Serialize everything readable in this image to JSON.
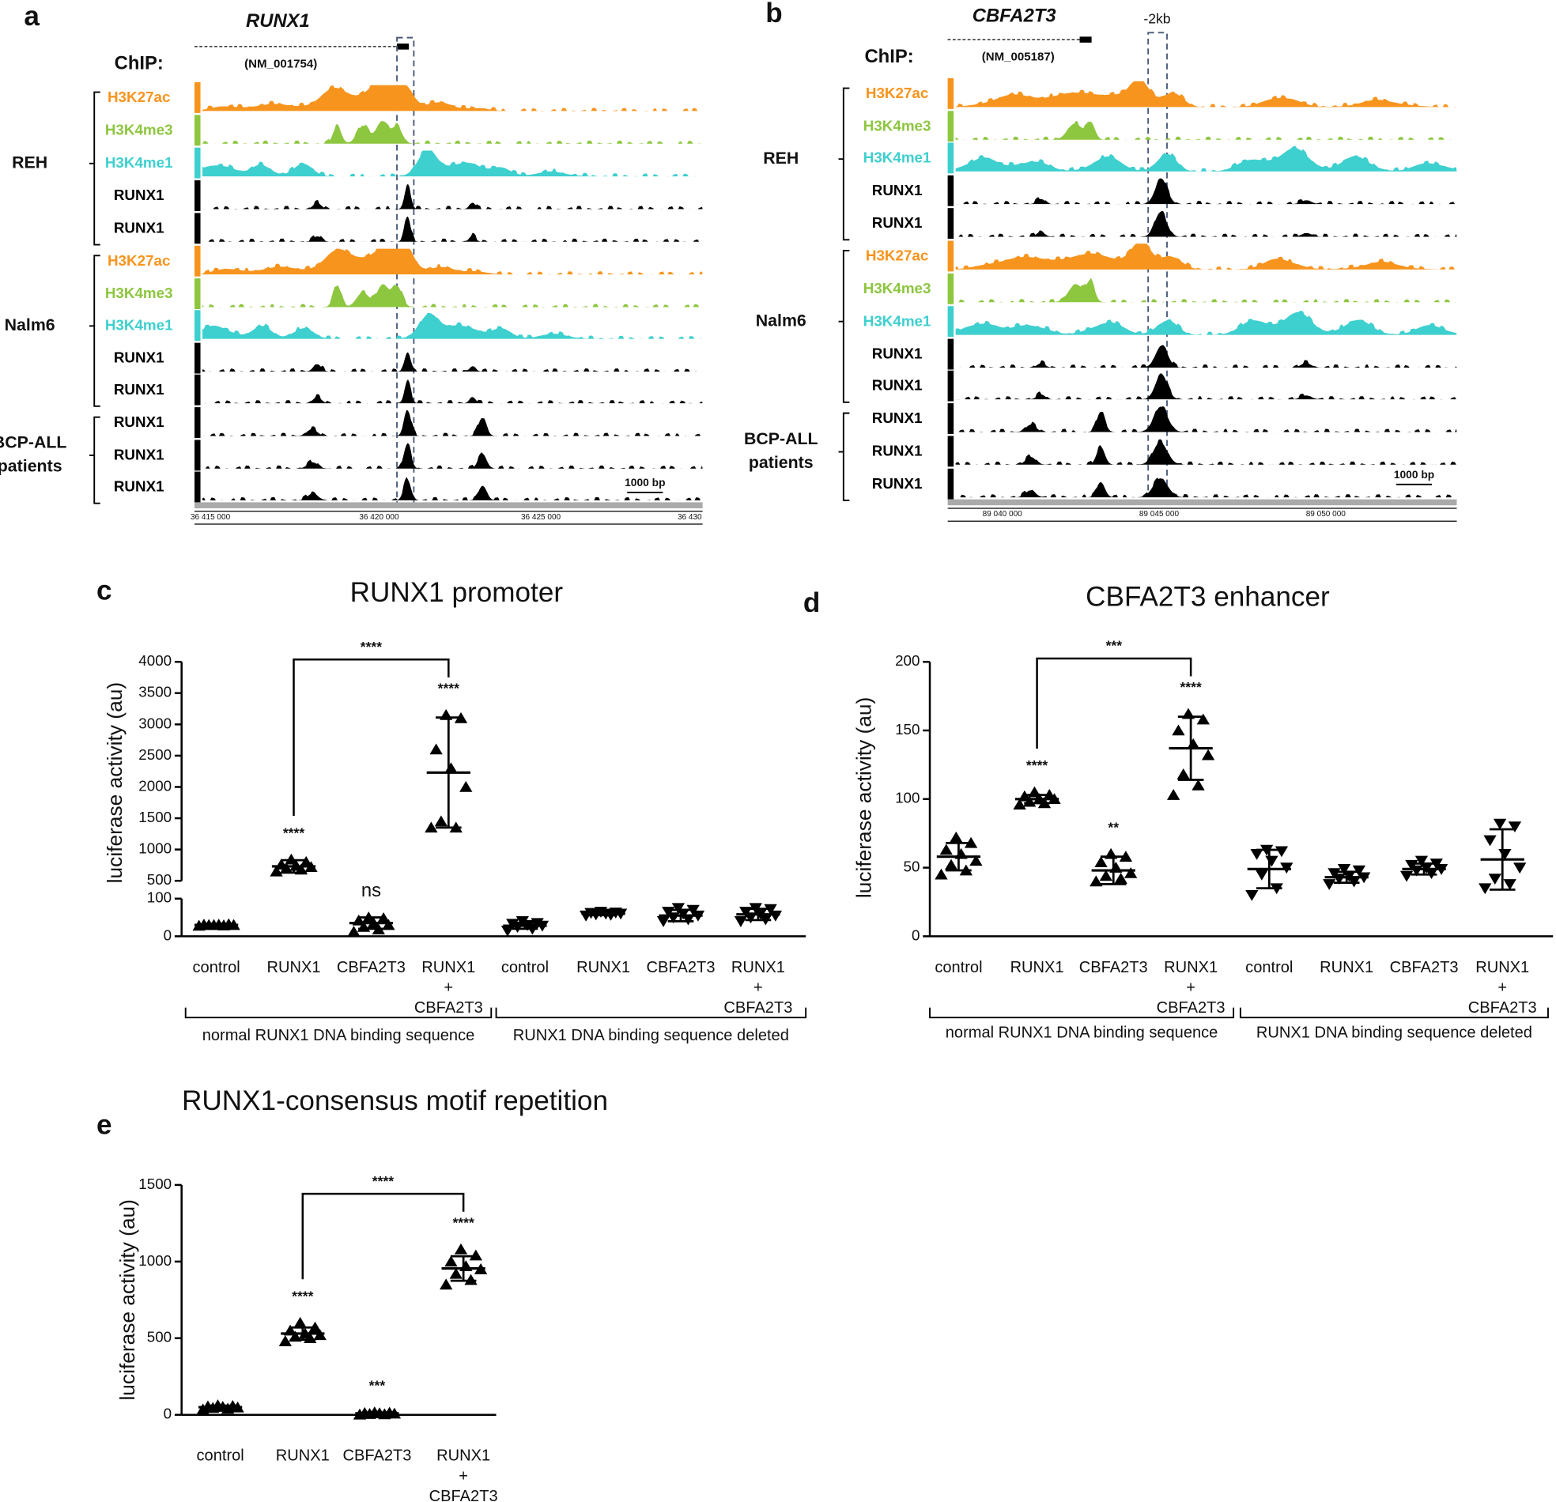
{
  "track_colors": {
    "H3K27ac": "#f7941d",
    "H3K4me3": "#8dc63f",
    "H3K4me1": "#3ecfcf",
    "RUNX1": "#000000"
  },
  "genome_panels": [
    {
      "letter": "a",
      "gene": "RUNX1",
      "chip": "ChIP:",
      "transcript": "(NM_001754)",
      "groups": [
        {
          "label": [
            "REH"
          ],
          "tracks": [
            "H3K27ac",
            "H3K4me3",
            "H3K4me1",
            "RUNX1",
            "RUNX1"
          ]
        },
        {
          "label": [
            "Nalm6"
          ],
          "tracks": [
            "H3K27ac",
            "H3K4me3",
            "H3K4me1",
            "RUNX1",
            "RUNX1"
          ]
        },
        {
          "label": [
            "BCP-ALL",
            "patients"
          ],
          "tracks": [
            "RUNX1",
            "RUNX1",
            "RUNX1"
          ]
        }
      ],
      "coordinates": [
        "36 415 000",
        "36 420 000",
        "36 425 000",
        "36 430"
      ],
      "scale_bar": "1000 bp"
    },
    {
      "letter": "b",
      "gene": "CBFA2T3",
      "annotation": "-2kb",
      "chip": "ChIP:",
      "transcript": "(NM_005187)",
      "groups": [
        {
          "label": [
            "REH"
          ],
          "tracks": [
            "H3K27ac",
            "H3K4me3",
            "H3K4me1",
            "RUNX1",
            "RUNX1"
          ]
        },
        {
          "label": [
            "Nalm6"
          ],
          "tracks": [
            "H3K27ac",
            "H3K4me3",
            "H3K4me1",
            "RUNX1",
            "RUNX1"
          ]
        },
        {
          "label": [
            "BCP-ALL",
            "patients"
          ],
          "tracks": [
            "RUNX1",
            "RUNX1",
            "RUNX1"
          ]
        }
      ],
      "coordinates": [
        "89 040 000",
        "89 045 000",
        "89 050 000"
      ],
      "scale_bar": "1000 bp"
    }
  ],
  "chart_data": [
    {
      "type": "scatter",
      "letter": "c",
      "title": "RUNX1 promoter",
      "ylabel": "luciferase activity (au)",
      "color": "#000000",
      "segments": [
        {
          "ylim": [
            0,
            100
          ],
          "yticks": [
            0,
            100
          ]
        },
        {
          "ylim": [
            500,
            4000
          ],
          "yticks": [
            500,
            1000,
            1500,
            2000,
            2500,
            3000,
            3500,
            4000
          ]
        }
      ],
      "groups": [
        {
          "label": "normal RUNX1 DNA binding sequence",
          "marker": "triangle-up",
          "categories": [
            "control",
            "RUNX1",
            "CBFA2T3",
            [
              "RUNX1",
              "+",
              "CBFA2T3"
            ]
          ],
          "values": [
            [
              28,
              29,
              30,
              30,
              31,
              31,
              32,
              30
            ],
            [
              650,
              680,
              700,
              720,
              740,
              760,
              800,
              840
            ],
            [
              12,
              18,
              25,
              30,
              35,
              42,
              48,
              50
            ],
            [
              1350,
              1350,
              1450,
              2000,
              2300,
              2600,
              3100,
              3150
            ]
          ],
          "means": [
            30,
            730,
            35,
            2230
          ],
          "sds": [
            3,
            100,
            15,
            880
          ],
          "significance": [
            null,
            "****",
            "ns",
            "****"
          ]
        },
        {
          "label": "RUNX1 DNA binding sequence deleted",
          "marker": "triangle-down",
          "categories": [
            "control",
            "RUNX1",
            "CBFA2T3",
            [
              "RUNX1",
              "+",
              "CBFA2T3"
            ]
          ],
          "values": [
            [
              15,
              20,
              25,
              28,
              30,
              33,
              35,
              40
            ],
            [
              55,
              57,
              58,
              60,
              60,
              62,
              63,
              65
            ],
            [
              40,
              45,
              50,
              55,
              60,
              65,
              70,
              75
            ],
            [
              40,
              45,
              50,
              55,
              60,
              65,
              72,
              75
            ]
          ],
          "means": [
            28,
            60,
            55,
            58
          ],
          "sds": [
            8,
            4,
            15,
            15
          ],
          "significance": [
            null,
            null,
            null,
            null
          ]
        }
      ],
      "comparison": {
        "label": "****",
        "between": [
          1,
          3
        ]
      }
    },
    {
      "type": "scatter",
      "letter": "d",
      "title": "CBFA2T3 enhancer",
      "ylabel": "luciferase activity (au)",
      "color": "#000000",
      "ylim": [
        0,
        200
      ],
      "yticks": [
        0,
        50,
        100,
        150,
        200
      ],
      "groups": [
        {
          "label": "normal RUNX1 DNA binding sequence",
          "marker": "triangle-up",
          "categories": [
            "control",
            "RUNX1",
            "CBFA2T3",
            [
              "RUNX1",
              "+",
              "CBFA2T3"
            ]
          ],
          "values": [
            [
              45,
              48,
              52,
              55,
              60,
              63,
              68,
              72
            ],
            [
              96,
              97,
              98,
              100,
              100,
              102,
              103,
              105
            ],
            [
              40,
              42,
              44,
              46,
              50,
              54,
              58,
              60
            ],
            [
              103,
              110,
              118,
              132,
              140,
              150,
              158,
              162
            ]
          ],
          "means": [
            58,
            100,
            48,
            137
          ],
          "sds": [
            10,
            3,
            10,
            23
          ],
          "significance": [
            null,
            "****",
            "**",
            "****"
          ]
        },
        {
          "label": "RUNX1 DNA binding sequence deleted",
          "marker": "triangle-down",
          "categories": [
            "control",
            "RUNX1",
            "CBFA2T3",
            [
              "RUNX1",
              "+",
              "CBFA2T3"
            ]
          ],
          "values": [
            [
              30,
              35,
              45,
              50,
              55,
              60,
              62,
              63
            ],
            [
              38,
              40,
              42,
              43,
              44,
              46,
              48,
              49
            ],
            [
              44,
              46,
              48,
              49,
              50,
              52,
              53,
              55
            ],
            [
              35,
              38,
              42,
              50,
              60,
              70,
              80,
              82
            ]
          ],
          "means": [
            49,
            43,
            49,
            56
          ],
          "sds": [
            14,
            4,
            4,
            22
          ],
          "significance": [
            null,
            null,
            null,
            null
          ]
        }
      ],
      "comparison": {
        "label": "***",
        "between": [
          1,
          3
        ]
      }
    },
    {
      "type": "scatter",
      "letter": "e",
      "title": "RUNX1-consensus motif repetition",
      "ylabel": "luciferase activity (au)",
      "color": "#000000",
      "ylim": [
        0,
        1500
      ],
      "yticks": [
        0,
        500,
        1000,
        1500
      ],
      "groups": [
        {
          "marker": "triangle-up",
          "categories": [
            "control",
            "RUNX1",
            "CBFA2T3",
            [
              "RUNX1",
              "+",
              "CBFA2T3"
            ]
          ],
          "values": [
            [
              35,
              40,
              45,
              48,
              52,
              55,
              58,
              62
            ],
            [
              480,
              500,
              510,
              520,
              530,
              550,
              570,
              600
            ],
            [
              2,
              4,
              6,
              8,
              10,
              12,
              14,
              16
            ],
            [
              850,
              880,
              920,
              950,
              970,
              1000,
              1040,
              1080
            ]
          ],
          "means": [
            50,
            530,
            10,
            955
          ],
          "sds": [
            10,
            40,
            5,
            80
          ],
          "significance": [
            null,
            "****",
            "***",
            "****"
          ]
        }
      ],
      "comparison": {
        "label": "****",
        "between": [
          1,
          3
        ]
      }
    }
  ]
}
